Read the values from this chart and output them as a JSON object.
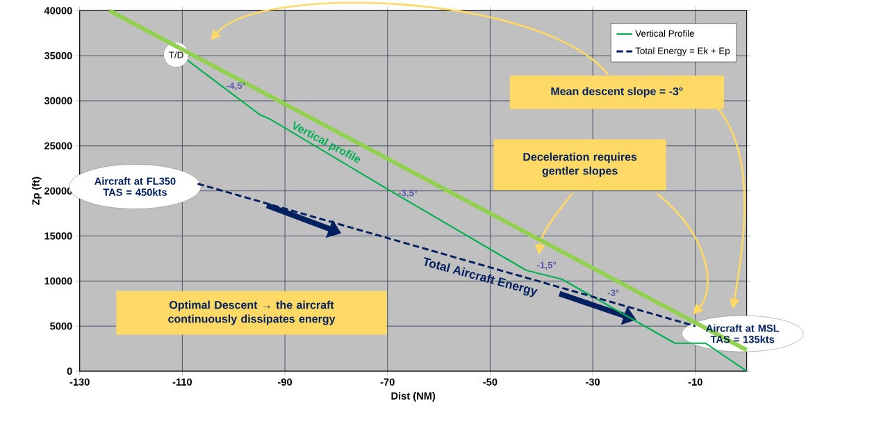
{
  "chart_data": {
    "type": "line",
    "xlabel": "Dist (NM)",
    "ylabel": "Zp (ft)",
    "xlim": [
      -130,
      0
    ],
    "ylim": [
      0,
      40000
    ],
    "xticks": [
      -130,
      -110,
      -90,
      -70,
      -50,
      -30,
      -10
    ],
    "yticks": [
      0,
      5000,
      10000,
      15000,
      20000,
      25000,
      30000,
      35000,
      40000
    ],
    "grid": true,
    "legend": "top right",
    "marker": "none",
    "series": [
      {
        "name": "Vertical Profile",
        "color": "#00b050",
        "line_style": "solid",
        "x": [
          -109,
          -95,
          -93,
          -70,
          -43,
          -36,
          -14,
          -8,
          0
        ],
        "values": [
          34500,
          28500,
          28000,
          20200,
          11200,
          10200,
          3100,
          3100,
          0
        ]
      },
      {
        "name": "Total Energy = Ek + Ep",
        "color": "#002060",
        "line_style": "dashed",
        "x": [
          -107,
          -10
        ],
        "values": [
          20800,
          5000
        ]
      },
      {
        "color": "#92d050",
        "line_style": "solid",
        "x": [
          -124.2,
          0
        ],
        "values": [
          40000,
          2350
        ]
      }
    ],
    "annotations": [
      "T/D",
      "-4,5°",
      "Vertical profile",
      "-3,5°",
      "-1,5°",
      "-3°",
      "Total Aircraft Energy",
      "Aircraft at FL350 TAS = 450kts",
      "Aircraft at MSL TAS = 135kts",
      "Mean descent slope = -3°",
      "Deceleration requires gentler slopes",
      "Optimal Descent → the aircraft continuously dissipates energy"
    ]
  }
}
